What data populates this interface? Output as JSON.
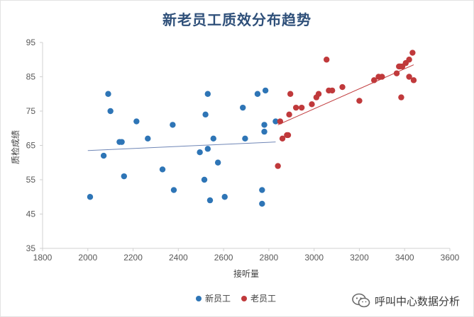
{
  "chart_data": {
    "type": "scatter",
    "title": "新老员工质效分布趋势",
    "xlabel": "接听量",
    "ylabel": "质检成绩",
    "xlim": [
      1800,
      3600
    ],
    "ylim": [
      35,
      95
    ],
    "xticks": [
      1800,
      2000,
      2200,
      2400,
      2600,
      2800,
      3000,
      3200,
      3400,
      3600
    ],
    "yticks": [
      35,
      45,
      55,
      65,
      75,
      85,
      95
    ],
    "grid": false,
    "legend_position": "bottom",
    "series": [
      {
        "name": "新员工",
        "color": "#2e75b6",
        "points": [
          [
            2010,
            50
          ],
          [
            2070,
            62
          ],
          [
            2090,
            80
          ],
          [
            2100,
            75
          ],
          [
            2140,
            66
          ],
          [
            2150,
            66
          ],
          [
            2160,
            56
          ],
          [
            2215,
            72
          ],
          [
            2265,
            67
          ],
          [
            2330,
            58
          ],
          [
            2375,
            71
          ],
          [
            2380,
            52
          ],
          [
            2495,
            63
          ],
          [
            2515,
            55
          ],
          [
            2520,
            74
          ],
          [
            2530,
            64
          ],
          [
            2530,
            80
          ],
          [
            2540,
            49
          ],
          [
            2555,
            67
          ],
          [
            2575,
            60
          ],
          [
            2605,
            50
          ],
          [
            2685,
            76
          ],
          [
            2695,
            67
          ],
          [
            2750,
            80
          ],
          [
            2770,
            52
          ],
          [
            2770,
            48
          ],
          [
            2780,
            71
          ],
          [
            2780,
            69
          ],
          [
            2785,
            81
          ],
          [
            2830,
            72
          ]
        ],
        "trend": [
          [
            2000,
            63.5
          ],
          [
            2830,
            66
          ]
        ]
      },
      {
        "name": "老员工",
        "color": "#c0393b",
        "points": [
          [
            2840,
            59
          ],
          [
            2850,
            72
          ],
          [
            2860,
            67
          ],
          [
            2880,
            68
          ],
          [
            2885,
            68
          ],
          [
            2890,
            74
          ],
          [
            2895,
            80
          ],
          [
            2920,
            76
          ],
          [
            2945,
            76
          ],
          [
            2990,
            77
          ],
          [
            3010,
            79
          ],
          [
            3020,
            80
          ],
          [
            3055,
            90
          ],
          [
            3065,
            81
          ],
          [
            3080,
            81
          ],
          [
            3125,
            82
          ],
          [
            3200,
            78
          ],
          [
            3265,
            84
          ],
          [
            3285,
            85
          ],
          [
            3300,
            85
          ],
          [
            3365,
            86
          ],
          [
            3375,
            88
          ],
          [
            3380,
            88
          ],
          [
            3390,
            88
          ],
          [
            3385,
            79
          ],
          [
            3405,
            89
          ],
          [
            3420,
            90
          ],
          [
            3420,
            85
          ],
          [
            3435,
            92
          ],
          [
            3440,
            84
          ]
        ],
        "trend": [
          [
            2840,
            71
          ],
          [
            3440,
            88.5
          ]
        ]
      }
    ]
  },
  "watermark": {
    "text": "呼叫中心数据分析",
    "icon": "wechat-icon"
  }
}
